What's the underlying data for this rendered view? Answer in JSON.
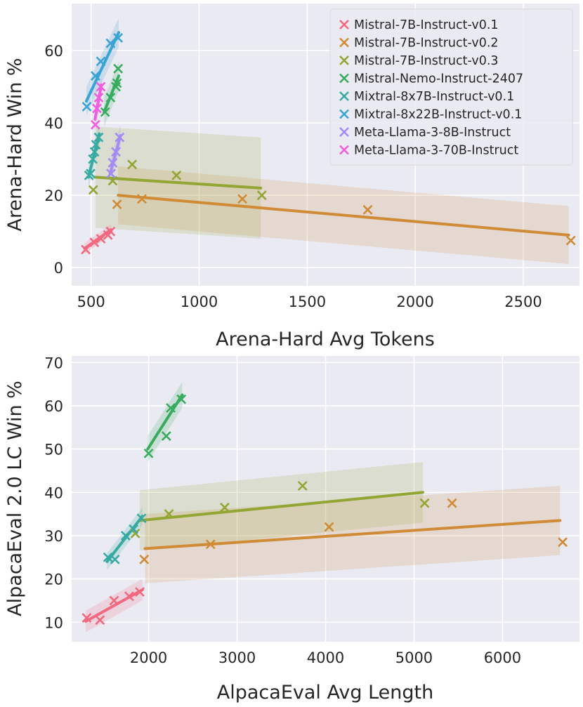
{
  "legend": [
    {
      "name": "Mistral-7B-Instruct-v0.1",
      "color": "#f2697f"
    },
    {
      "name": "Mistral-7B-Instruct-v0.2",
      "color": "#cf8b35"
    },
    {
      "name": "Mistral-7B-Instruct-v0.3",
      "color": "#93a533"
    },
    {
      "name": "Mistral-Nemo-Instruct-2407",
      "color": "#38ac5e"
    },
    {
      "name": "Mixtral-8x7B-Instruct-v0.1",
      "color": "#37aaa2"
    },
    {
      "name": "Mixtral-8x22B-Instruct-v0.1",
      "color": "#3ba3d4"
    },
    {
      "name": "Meta-Llama-3-8B-Instruct",
      "color": "#a38bf2"
    },
    {
      "name": "Meta-Llama-3-70B-Instruct",
      "color": "#f05ee0"
    }
  ],
  "chart_data": [
    {
      "type": "scatter",
      "title": "",
      "xlabel": "Arena-Hard Avg Tokens",
      "ylabel": "Arena-Hard Win %",
      "xlim": [
        410,
        2760
      ],
      "ylim": [
        -5,
        73
      ],
      "xticks": [
        500,
        1000,
        1500,
        2000,
        2500
      ],
      "yticks": [
        0,
        20,
        40,
        60
      ],
      "grid": true,
      "series": [
        {
          "name": "Mistral-7B-Instruct-v0.1",
          "x": [
            475,
            515,
            545,
            578,
            590
          ],
          "y": [
            5,
            7,
            8,
            9,
            10
          ],
          "fit": [
            [
              470,
              5.3
            ],
            [
              592,
              10.5
            ]
          ],
          "band": 1.5
        },
        {
          "name": "Mistral-7B-Instruct-v0.2",
          "x": [
            620,
            735,
            1200,
            1780,
            2720
          ],
          "y": [
            17.5,
            19,
            19,
            16,
            7.5
          ],
          "fit": [
            [
              625,
              20
            ],
            [
              2710,
              9
            ]
          ],
          "band": 8
        },
        {
          "name": "Mistral-7B-Instruct-v0.3",
          "x": [
            510,
            600,
            690,
            895,
            1290
          ],
          "y": [
            21.5,
            24,
            28.5,
            25.5,
            20
          ],
          "fit": [
            [
              520,
              25
            ],
            [
              1285,
              22
            ]
          ],
          "band": 14
        },
        {
          "name": "Mistral-Nemo-Instruct-2407",
          "x": [
            565,
            590,
            615,
            625,
            620
          ],
          "y": [
            43,
            47,
            50,
            55,
            51
          ],
          "fit": [
            [
              560,
              43
            ],
            [
              628,
              53
            ]
          ],
          "band": 4
        },
        {
          "name": "Mixtral-8x7B-Instruct-v0.1",
          "x": [
            490,
            498,
            508,
            516,
            522,
            535
          ],
          "y": [
            25.5,
            26,
            30,
            32,
            34,
            36
          ],
          "fit": [
            [
              488,
              25
            ],
            [
              538,
              37
            ]
          ],
          "band": 3
        },
        {
          "name": "Mixtral-8x22B-Instruct-v0.1",
          "x": [
            480,
            520,
            545,
            590,
            625
          ],
          "y": [
            44.5,
            53,
            57,
            62,
            63.5
          ],
          "fit": [
            [
              478,
              46
            ],
            [
              628,
              65
            ]
          ],
          "band": 4
        },
        {
          "name": "Meta-Llama-3-8B-Instruct",
          "x": [
            592,
            600,
            615,
            632
          ],
          "y": [
            26,
            29,
            32,
            36
          ],
          "fit": [
            [
              588,
              26
            ],
            [
              636,
              36.5
            ]
          ],
          "band": 3
        },
        {
          "name": "Meta-Llama-3-70B-Instruct",
          "x": [
            520,
            527,
            535,
            545
          ],
          "y": [
            39.5,
            44,
            47,
            50
          ],
          "fit": [
            [
              518,
              41
            ],
            [
              548,
              50.5
            ]
          ],
          "band": 3
        }
      ]
    },
    {
      "type": "scatter",
      "title": "",
      "xlabel": "AlpacaEval Avg Length",
      "ylabel": "AlpacaEval 2.0 LC Win %",
      "xlim": [
        1130,
        6870
      ],
      "ylim": [
        5.5,
        71.5
      ],
      "xticks": [
        2000,
        3000,
        4000,
        5000,
        6000
      ],
      "yticks": [
        10,
        20,
        30,
        40,
        50,
        60,
        70
      ],
      "grid": true,
      "series": [
        {
          "name": "Mistral-7B-Instruct-v0.1",
          "x": [
            1300,
            1450,
            1610,
            1780,
            1900
          ],
          "y": [
            11,
            10.5,
            15,
            16,
            17
          ],
          "fit": [
            [
              1290,
              10.2
            ],
            [
              1930,
              17.5
            ]
          ],
          "band": 2.5
        },
        {
          "name": "Mistral-7B-Instruct-v0.2",
          "x": [
            1950,
            2700,
            4040,
            5430,
            6680
          ],
          "y": [
            24.5,
            28,
            32,
            37.5,
            28.5
          ],
          "fit": [
            [
              1960,
              27
            ],
            [
              6650,
              33.5
            ]
          ],
          "band": 8
        },
        {
          "name": "Mistral-7B-Instruct-v0.3",
          "x": [
            1850,
            2230,
            2860,
            3740,
            5120
          ],
          "y": [
            30.5,
            35,
            36.5,
            41.5,
            37.5
          ],
          "fit": [
            [
              1900,
              33.5
            ],
            [
              5100,
              40
            ]
          ],
          "band": 7
        },
        {
          "name": "Mistral-Nemo-Instruct-2407",
          "x": [
            2000,
            2200,
            2250,
            2370
          ],
          "y": [
            49,
            53,
            59.5,
            61.5
          ],
          "fit": [
            [
              1990,
              50
            ],
            [
              2380,
              62.5
            ]
          ],
          "band": 3
        },
        {
          "name": "Mixtral-8x7B-Instruct-v0.1",
          "x": [
            1540,
            1620,
            1740,
            1830,
            1920
          ],
          "y": [
            25,
            24.5,
            30,
            31.5,
            34
          ],
          "fit": [
            [
              1530,
              24
            ],
            [
              1930,
              34.5
            ]
          ],
          "band": 2
        }
      ]
    }
  ]
}
